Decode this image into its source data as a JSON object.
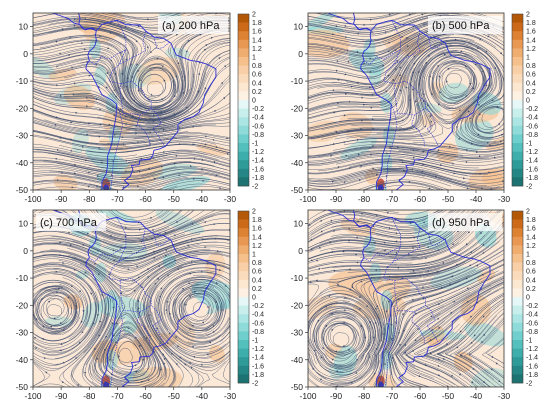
{
  "figure": {
    "panels": [
      {
        "id": "a",
        "title": "(a) 200 hPa",
        "style": "zonal"
      },
      {
        "id": "b",
        "title": "(b) 500 hPa",
        "style": "anticyclone"
      },
      {
        "id": "c",
        "title": "(c) 700 hPa",
        "style": "subtropical-high"
      },
      {
        "id": "d",
        "title": "(d) 950 hPa",
        "style": "low-level"
      }
    ],
    "x_ticks": [
      "-100",
      "-90",
      "-80",
      "-70",
      "-60",
      "-50",
      "-40",
      "-30"
    ],
    "y_ticks": [
      "10",
      "0",
      "-10",
      "-20",
      "-30",
      "-40",
      "-50"
    ],
    "lon_range": [
      -100,
      -30
    ],
    "lat_range": [
      -50,
      15
    ],
    "colorbar": {
      "range": [
        -2,
        2
      ],
      "ticks": [
        "2",
        "1.8",
        "1.6",
        "1.4",
        "1.2",
        "1",
        "0.8",
        "0.6",
        "0.4",
        "0.2",
        "0",
        "-0.2",
        "-0.4",
        "-0.6",
        "-0.8",
        "-1",
        "-1.2",
        "-1.4",
        "-1.6",
        "-1.8",
        "-2"
      ],
      "colors": [
        "#b35806",
        "#cc6a1a",
        "#dd8133",
        "#e89852",
        "#f0ad70",
        "#f5c08c",
        "#f8cfa6",
        "#fadcbc",
        "#fce7d1",
        "#fdf1e4",
        "#e5f7f6",
        "#c9efed",
        "#acE6e4",
        "#8edbd9",
        "#6fcfcd",
        "#54c0be",
        "#3eaeac",
        "#2e9b99",
        "#248785",
        "#1c7371"
      ]
    },
    "colors": {
      "streamline": "#3b4a6b",
      "coast": "#2a2fd6",
      "positive": "#f4bd8a",
      "negative": "#8fd9d8"
    }
  }
}
